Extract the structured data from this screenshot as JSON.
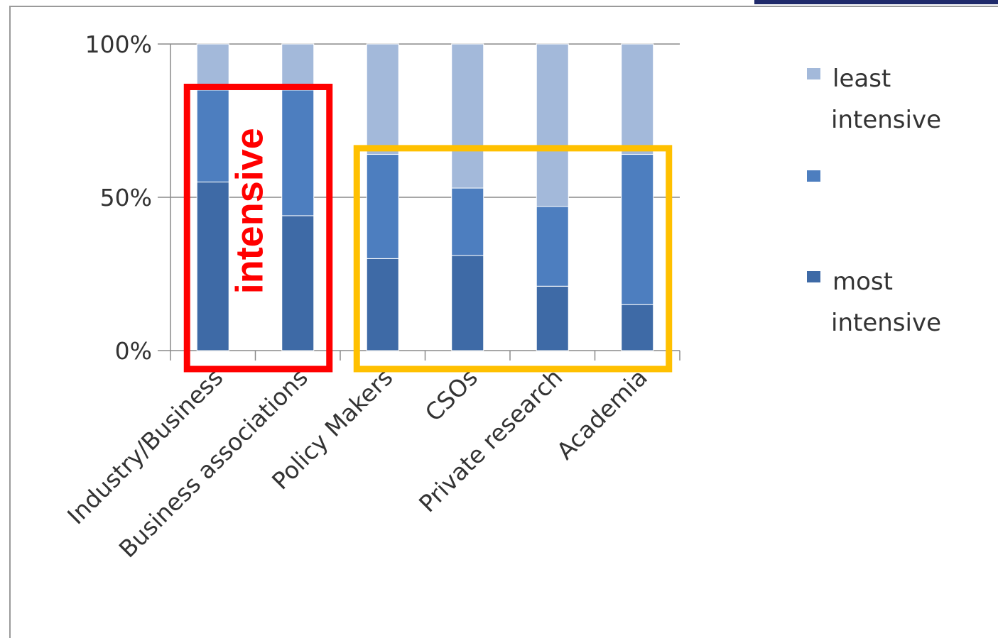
{
  "chart_data": {
    "type": "bar",
    "stacked": true,
    "percent_stacked": true,
    "categories": [
      "Industry/Business",
      "Business associations",
      "Policy Makers",
      "CSOs",
      "Private research",
      "Academia"
    ],
    "series": [
      {
        "name": "most intensive",
        "color": "#3e6aa6",
        "values": [
          55,
          44,
          30,
          31,
          21,
          15
        ]
      },
      {
        "name": "",
        "color": "#4d7ebf",
        "values": [
          30,
          41,
          34,
          22,
          26,
          49
        ]
      },
      {
        "name": "least intensive",
        "color": "#a3b9da",
        "values": [
          15,
          15,
          36,
          47,
          53,
          36
        ]
      }
    ],
    "y_ticks": [
      "0%",
      "50%",
      "100%"
    ],
    "ylim": [
      0,
      100
    ],
    "grid": true,
    "legend": {
      "placement": "right",
      "entries": [
        {
          "lines": [
            "least",
            "intensive"
          ],
          "color": "#a3b9da"
        },
        {
          "lines": [],
          "color": "#4d7ebf"
        },
        {
          "lines": [
            "most",
            "intensive"
          ],
          "color": "#3e6aa6"
        }
      ]
    },
    "annotations": [
      {
        "text": "intensive",
        "color": "#ff0000",
        "groups": [
          "Industry/Business",
          "Business associations"
        ]
      },
      {
        "text": "",
        "color": "#ffc000",
        "groups": [
          "Policy Makers",
          "CSOs",
          "Private research",
          "Academia"
        ]
      }
    ]
  },
  "header_color": "#1f2a6b"
}
